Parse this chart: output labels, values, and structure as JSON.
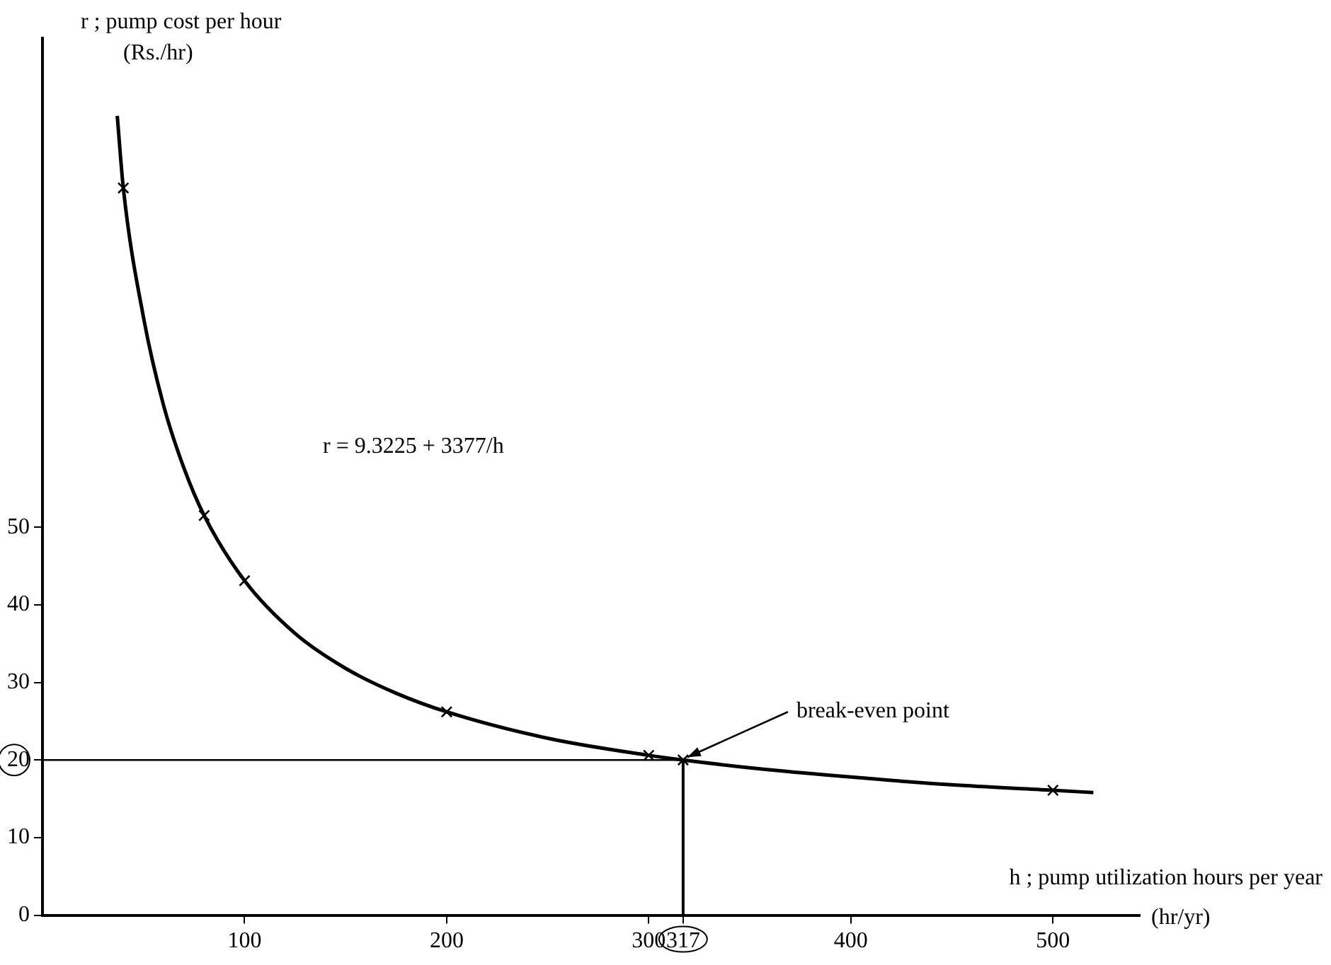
{
  "chart_data": {
    "type": "line",
    "xlabel": "h ; pump utilization hours per year",
    "ylabel": "r ; pump cost per hour\n(Rs./hr)",
    "x": [
      37,
      40,
      50,
      60,
      70,
      80,
      100,
      125,
      150,
      175,
      200,
      250,
      300,
      317,
      350,
      400,
      450,
      500,
      520
    ],
    "series": [
      {
        "color": "#000000",
        "marker": "none",
        "values": [
          103,
          93.7,
          77,
          65.6,
          57.6,
          51.5,
          43.1,
          36.3,
          31.8,
          28.6,
          26.2,
          22.8,
          20.6,
          20,
          19,
          17.8,
          16.8,
          16.1,
          15.8
        ]
      },
      {
        "type": "scatter",
        "color": "#000000",
        "marker": "cross",
        "x": [
          40,
          80,
          100,
          200,
          300,
          317,
          500
        ],
        "values": [
          93.7,
          51.5,
          43.1,
          26.2,
          20.6,
          20,
          16.1
        ]
      }
    ],
    "xlim": [
      0,
      543
    ],
    "ylim": [
      0,
      113
    ],
    "xticks": [
      100,
      200,
      300,
      {
        "value": 317,
        "label": "317"
      },
      400,
      500
    ],
    "yticks": [
      0,
      10,
      20,
      30,
      40,
      50
    ],
    "ref_lines": [
      {
        "axis": "y",
        "value": 20,
        "color": "#000000"
      },
      {
        "axis": "x",
        "value": 317,
        "color": "#000000"
      }
    ],
    "annotations": [
      "r = 9.3225 + 3377/h",
      {
        "text": "break-even point",
        "x": 317,
        "y": 20
      },
      "(hr/yr)"
    ],
    "grid": false,
    "legend": false
  }
}
